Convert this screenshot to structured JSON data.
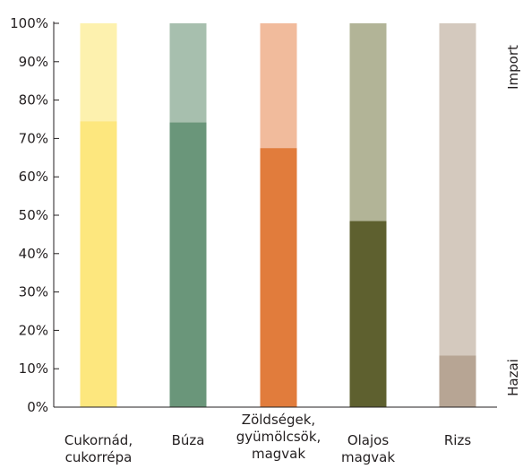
{
  "chart_data": {
    "type": "bar",
    "stacked": true,
    "categories": [
      [
        "Cukornád,",
        "cukorrépa"
      ],
      [
        "Búza"
      ],
      [
        "Zöldségek,",
        "gyümölcsök,",
        "magvak"
      ],
      [
        "Olajos",
        "magvak"
      ],
      [
        "Rizs"
      ]
    ],
    "series": [
      {
        "name": "Hazai",
        "values": [
          74.5,
          74.2,
          67.5,
          48.5,
          13.5
        ],
        "colors": [
          "#fde77e",
          "#6a967a",
          "#e17c3c",
          "#5e602f",
          "#b7a594"
        ]
      },
      {
        "name": "Import",
        "values": [
          25.5,
          25.8,
          32.5,
          51.5,
          86.5
        ],
        "colors": [
          "#fdf1ae",
          "#a7bfae",
          "#f1bb9c",
          "#b2b497",
          "#d4c9be"
        ]
      }
    ],
    "y_ticks": [
      "0%",
      "10%",
      "20%",
      "30%",
      "40%",
      "50%",
      "60%",
      "70%",
      "80%",
      "90%",
      "100%"
    ],
    "ylim": [
      0,
      100
    ],
    "grid": false,
    "legend": "right-side vertical labels",
    "title": "",
    "xlabel": "",
    "ylabel": ""
  }
}
